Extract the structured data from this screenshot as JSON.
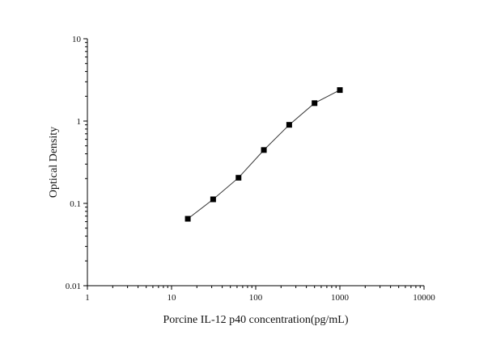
{
  "chart_data": {
    "type": "scatter",
    "title": "",
    "xlabel": "Porcine IL-12 p40 concentration(pg/mL)",
    "ylabel": "Optical Density",
    "x_scale": "log",
    "y_scale": "log",
    "xlim": [
      1,
      10000
    ],
    "ylim": [
      0.01,
      10
    ],
    "x_ticks": [
      "1",
      "10",
      "100",
      "1000",
      "10000"
    ],
    "y_ticks": [
      "0.01",
      "0.1",
      "1",
      "10"
    ],
    "grid": false,
    "marker": "square",
    "line": "connecting-line",
    "series": [
      {
        "x": [
          15.6,
          31.2,
          62.5,
          125,
          250,
          500,
          1000
        ],
        "y": [
          0.065,
          0.112,
          0.205,
          0.445,
          0.9,
          1.65,
          2.38
        ]
      }
    ],
    "colors": {
      "marker": "#000000",
      "line": "#333333",
      "axis": "#000000"
    }
  }
}
